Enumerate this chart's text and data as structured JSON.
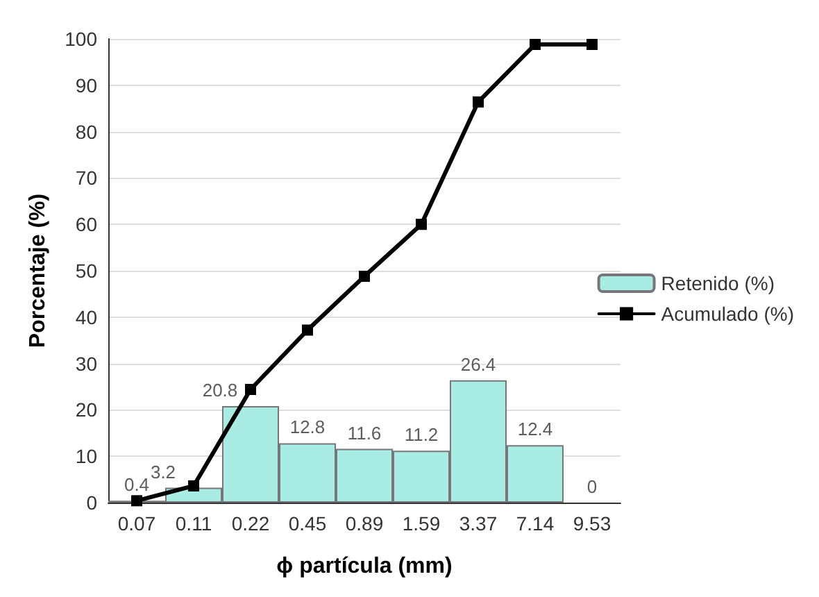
{
  "chart_data": {
    "type": "bar",
    "xlabel": "ϕ partícula (mm)",
    "ylabel": "Porcentaje (%)",
    "categories": [
      "0.07",
      "0.11",
      "0.22",
      "0.45",
      "0.89",
      "1.59",
      "3.37",
      "7.14",
      "9.53"
    ],
    "series": [
      {
        "name": "Retenido (%)",
        "color": "#a8ece4",
        "values": [
          0.4,
          3.2,
          20.8,
          12.8,
          11.6,
          11.2,
          26.4,
          12.4,
          0
        ],
        "value_labels": [
          "0.4",
          "3.2",
          "20.8",
          "12.8",
          "11.6",
          "11.2",
          "26.4",
          "12.4",
          "0"
        ]
      },
      {
        "name": "Acumulado (%)",
        "type": "line",
        "color": "#000000",
        "values": [
          0.4,
          3.6,
          24.4,
          37.2,
          48.8,
          60,
          86.4,
          98.8,
          98.8
        ],
        "marker": "square",
        "line_style": "solid"
      }
    ],
    "ylim": [
      0,
      100
    ],
    "yticks": [
      0,
      10,
      20,
      30,
      40,
      50,
      60,
      70,
      80,
      90,
      100
    ],
    "grid": "y",
    "legend": "right"
  }
}
